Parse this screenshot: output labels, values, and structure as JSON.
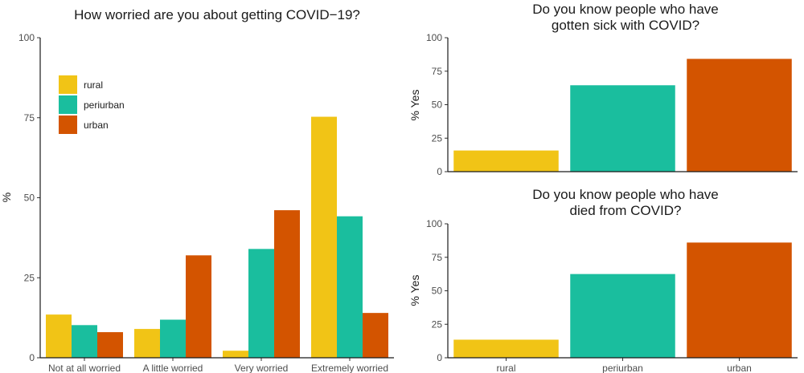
{
  "colors": {
    "rural": "#f1c416",
    "periurban": "#1abe9e",
    "urban": "#d35400"
  },
  "chart_data": [
    {
      "type": "bar",
      "title": "How worried are you about getting COVID−19?",
      "xlabel": "",
      "ylabel": "%",
      "ylim": [
        0,
        100
      ],
      "yticks": [
        "0",
        "25",
        "50",
        "75",
        "100"
      ],
      "categories": [
        "Not at all worried",
        "A little worried",
        "Very worried",
        "Extremely worried"
      ],
      "legend": {
        "position": "top-left",
        "entries": [
          "rural",
          "periurban",
          "urban"
        ]
      },
      "series": [
        {
          "name": "rural",
          "values": [
            13.5,
            9,
            2.2,
            75.3
          ]
        },
        {
          "name": "periurban",
          "values": [
            10.2,
            11.9,
            34,
            44.2
          ]
        },
        {
          "name": "urban",
          "values": [
            8,
            32,
            46.1,
            14
          ]
        }
      ]
    },
    {
      "type": "bar",
      "title": [
        "Do you know people who have",
        "gotten sick with COVID?"
      ],
      "xlabel": "",
      "ylabel": "% Yes",
      "ylim": [
        0,
        100
      ],
      "yticks": [
        "0",
        "25",
        "50",
        "75",
        "100"
      ],
      "categories": [
        "rural",
        "periurban",
        "urban"
      ],
      "values": [
        15.8,
        64.5,
        84.2
      ]
    },
    {
      "type": "bar",
      "title": [
        "Do you know people who have",
        "died from COVID?"
      ],
      "xlabel": "",
      "ylabel": "% Yes",
      "ylim": [
        0,
        100
      ],
      "yticks": [
        "0",
        "25",
        "50",
        "75",
        "100"
      ],
      "categories": [
        "rural",
        "periurban",
        "urban"
      ],
      "values": [
        13.5,
        62.5,
        86
      ]
    }
  ]
}
